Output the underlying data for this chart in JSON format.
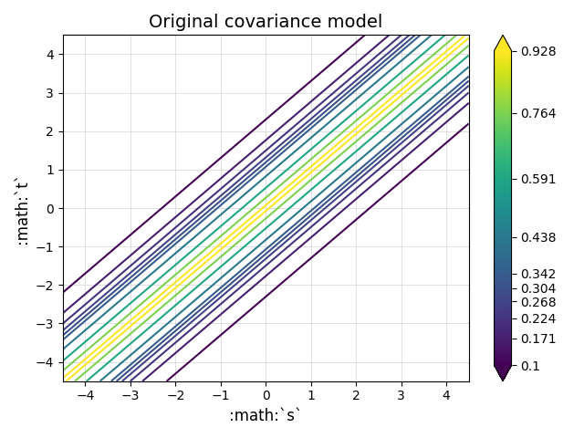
{
  "title": "Original covariance model",
  "xlabel": ":math:`s`",
  "ylabel": ":math:`t`",
  "xlim": [
    -4.5,
    4.5
  ],
  "ylim": [
    -4.5,
    4.5
  ],
  "xticks": [
    -4,
    -3,
    -2,
    -1,
    0,
    1,
    2,
    3,
    4
  ],
  "yticks": [
    -4,
    -3,
    -2,
    -1,
    0,
    1,
    2,
    3,
    4
  ],
  "levels": [
    0.1,
    0.171,
    0.224,
    0.268,
    0.304,
    0.342,
    0.438,
    0.591,
    0.764,
    0.928
  ],
  "cmap": "viridis",
  "grid": true,
  "figsize": [
    6.4,
    4.8
  ],
  "dpi": 100
}
